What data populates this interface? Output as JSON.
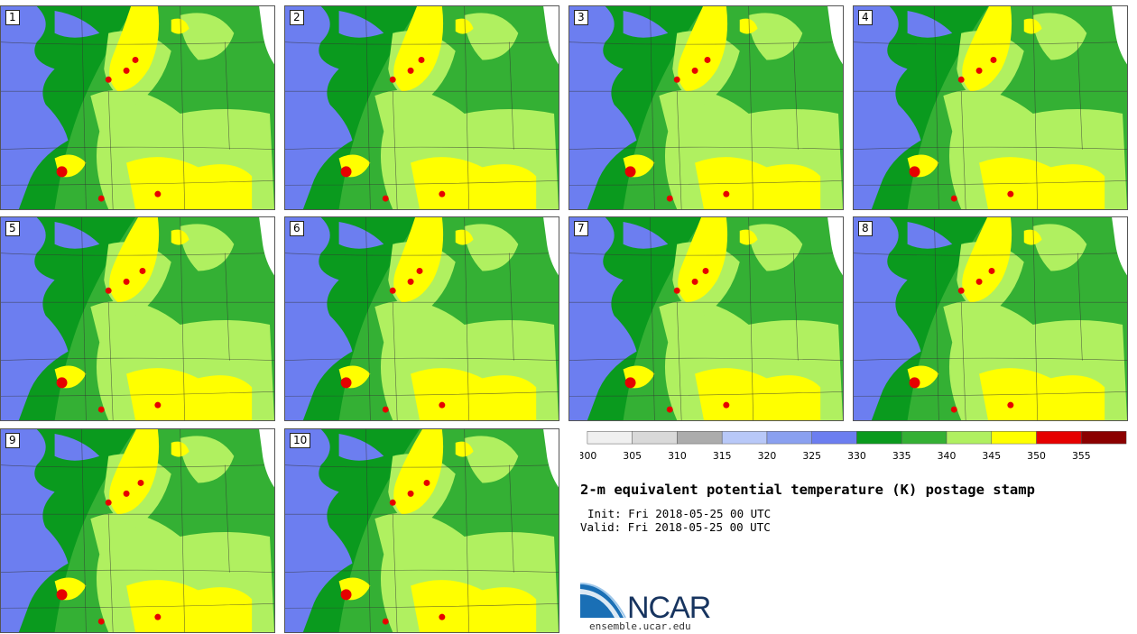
{
  "panels": [
    {
      "label": "1"
    },
    {
      "label": "2"
    },
    {
      "label": "3"
    },
    {
      "label": "4"
    },
    {
      "label": "5"
    },
    {
      "label": "6"
    },
    {
      "label": "7"
    },
    {
      "label": "8"
    },
    {
      "label": "9"
    },
    {
      "label": "10"
    }
  ],
  "colorbar": {
    "tick_labels": [
      "300",
      "305",
      "310",
      "315",
      "320",
      "325",
      "330",
      "335",
      "340",
      "345",
      "350",
      "355"
    ],
    "colors": [
      "#f0f0f0",
      "#d9d9d9",
      "#acacac",
      "#b8c8f8",
      "#8aa0f0",
      "#6c7ef0",
      "#0a9a1e",
      "#34b034",
      "#b0f060",
      "#ffff00",
      "#e60000",
      "#8b0000"
    ]
  },
  "title": "2-m equivalent potential temperature (K) postage stamp",
  "init": "Init: Fri 2018-05-25 00 UTC",
  "valid": "Valid: Fri 2018-05-25 00 UTC",
  "logo_text": "NCAR",
  "site": "ensemble.ucar.edu"
}
